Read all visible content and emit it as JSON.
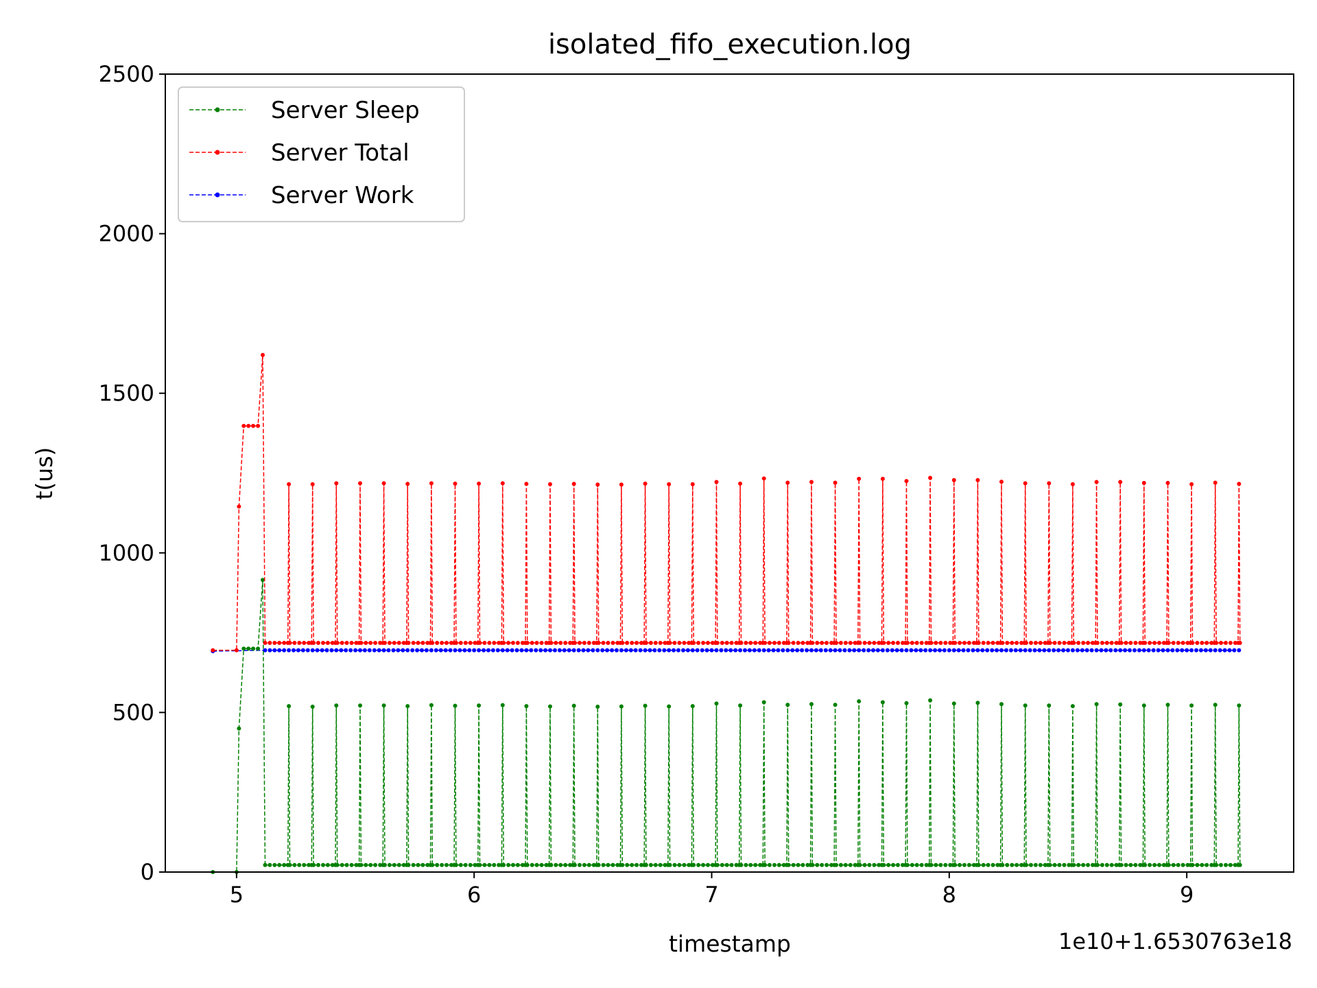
{
  "chart_data": {
    "type": "line",
    "title": "isolated_fifo_execution.log",
    "xlabel": "timestamp",
    "ylabel": "t(us)",
    "x_offset_text": "1e10+1.6530763e18",
    "xlim": [
      4.7,
      9.45
    ],
    "ylim": [
      0,
      2500
    ],
    "xticks": [
      5,
      6,
      7,
      8,
      9
    ],
    "xtick_labels": [
      "5",
      "6",
      "7",
      "8",
      "9"
    ],
    "yticks": [
      0,
      500,
      1000,
      1500,
      2000,
      2500
    ],
    "ytick_labels": [
      "0",
      "500",
      "1000",
      "1500",
      "2000",
      "2500"
    ],
    "grid": false,
    "legend_position": "upper-left",
    "spike_x": [
      5.22,
      5.32,
      5.42,
      5.52,
      5.62,
      5.72,
      5.82,
      5.92,
      6.02,
      6.12,
      6.22,
      6.32,
      6.42,
      6.52,
      6.62,
      6.72,
      6.82,
      6.92,
      7.02,
      7.12,
      7.22,
      7.32,
      7.42,
      7.52,
      7.62,
      7.72,
      7.82,
      7.92,
      8.02,
      8.12,
      8.22,
      8.32,
      8.42,
      8.52,
      8.62,
      8.72,
      8.82,
      8.92,
      9.02,
      9.12,
      9.22
    ],
    "series": [
      {
        "name": "Server Sleep",
        "color": "#008000",
        "baseline": 22,
        "spike_values": [
          520,
          518,
          522,
          522,
          522,
          520,
          523,
          521,
          522,
          523,
          520,
          519,
          521,
          518,
          519,
          521,
          519,
          520,
          528,
          522,
          532,
          524,
          526,
          524,
          535,
          532,
          529,
          538,
          528,
          530,
          526,
          522,
          522,
          520,
          526,
          525,
          522,
          524,
          522,
          524,
          522
        ],
        "start_segment": [
          [
            4.9,
            0
          ],
          [
            5.0,
            0
          ],
          [
            5.01,
            450
          ],
          [
            5.03,
            700
          ],
          [
            5.05,
            700
          ],
          [
            5.07,
            700
          ],
          [
            5.09,
            700
          ],
          [
            5.11,
            915
          ],
          [
            5.12,
            22
          ]
        ],
        "end_x": 9.23
      },
      {
        "name": "Server Total",
        "color": "#ff0000",
        "baseline": 718,
        "spike_values": [
          1215,
          1215,
          1218,
          1218,
          1218,
          1216,
          1218,
          1217,
          1217,
          1218,
          1216,
          1215,
          1216,
          1214,
          1214,
          1217,
          1215,
          1215,
          1222,
          1217,
          1233,
          1220,
          1222,
          1220,
          1232,
          1232,
          1225,
          1235,
          1228,
          1228,
          1223,
          1218,
          1218,
          1215,
          1222,
          1222,
          1219,
          1219,
          1215,
          1220,
          1216
        ],
        "start_segment": [
          [
            4.9,
            695
          ],
          [
            5.0,
            695
          ],
          [
            5.01,
            1145
          ],
          [
            5.03,
            1398
          ],
          [
            5.05,
            1398
          ],
          [
            5.07,
            1398
          ],
          [
            5.09,
            1398
          ],
          [
            5.11,
            1620
          ],
          [
            5.12,
            718
          ]
        ],
        "end_x": 9.23
      },
      {
        "name": "Server Work",
        "color": "#0000ff",
        "baseline": 695,
        "spike_values": [],
        "start_segment": [
          [
            4.9,
            692
          ],
          [
            5.12,
            695
          ]
        ],
        "end_x": 9.23
      }
    ]
  }
}
